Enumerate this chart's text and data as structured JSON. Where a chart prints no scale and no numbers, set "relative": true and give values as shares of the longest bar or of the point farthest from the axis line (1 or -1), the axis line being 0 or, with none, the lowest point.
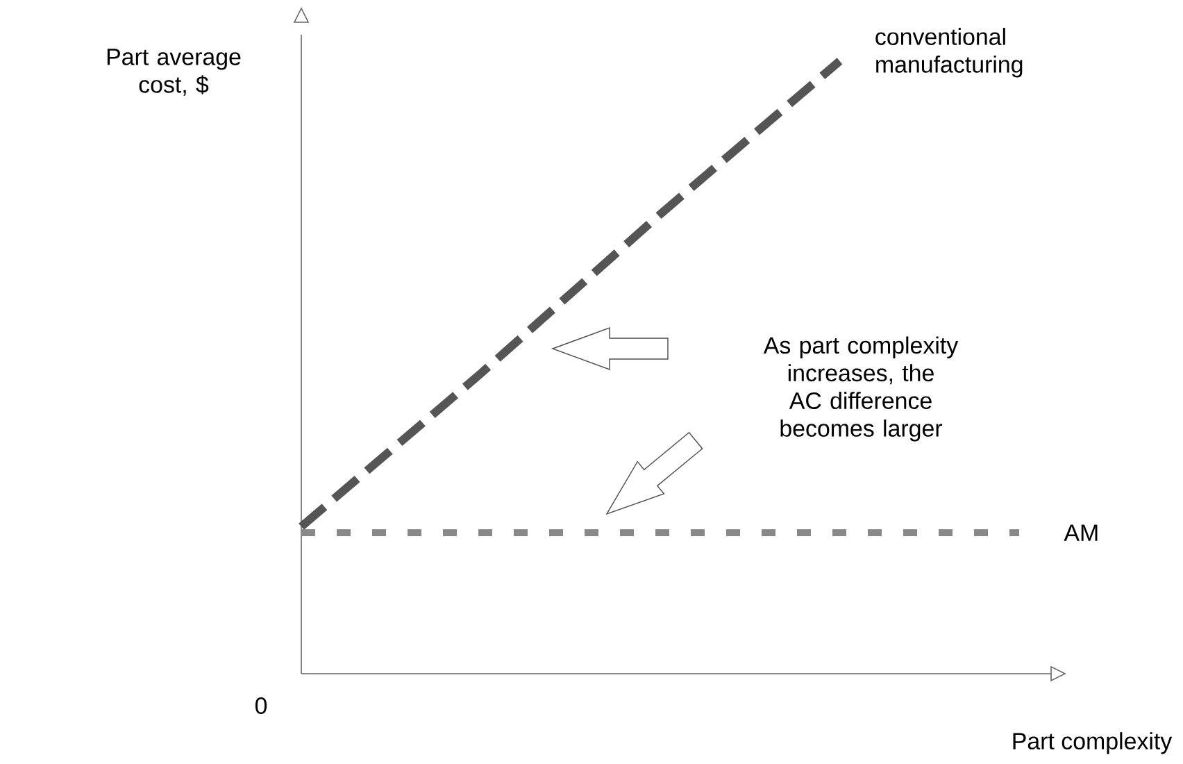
{
  "chart_data": {
    "type": "line",
    "relative": true,
    "xlabel": "Part complexity",
    "ylabel": "Part average cost, $",
    "categories": [
      null,
      null,
      null,
      null,
      null
    ],
    "series": [
      {
        "name": "conventional manufacturing",
        "color": "#555555",
        "values": [
          0.24,
          0.49,
          0.75,
          1,
          null
        ]
      },
      {
        "name": "AM",
        "color": "#888888",
        "values": [
          0.23,
          0.23,
          0.23,
          0.23,
          0.23
        ]
      }
    ],
    "line_style": "dashed",
    "marker": "none",
    "annotations": [
      "0",
      "As part complexity increases, the AC difference becomes larger"
    ]
  }
}
